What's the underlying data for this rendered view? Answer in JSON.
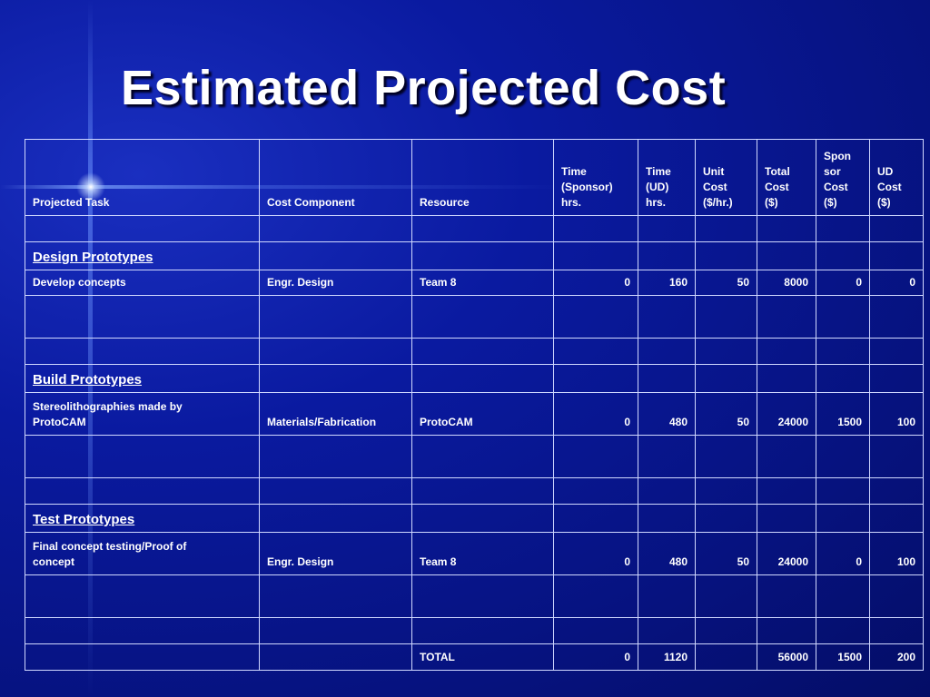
{
  "title": "Estimated Projected Cost",
  "headers": {
    "task": "Projected Task",
    "component": "Cost Component",
    "resource": "Resource",
    "time_sponsor": "Time\n(Sponsor)\nhrs.",
    "time_ud": "Time\n(UD)\nhrs.",
    "unit_cost": "Unit\nCost\n($/hr.)",
    "total_cost": "Total\nCost\n($)",
    "sponsor_cost": "Spon\nsor\nCost\n($)",
    "ud_cost": "UD\nCost\n($)"
  },
  "sections": {
    "design": "Design Prototypes",
    "build": "Build Prototypes",
    "test": "Test Prototypes"
  },
  "rows": {
    "develop": {
      "task": "Develop concepts",
      "component": "Engr. Design",
      "resource": "Team 8",
      "time_sponsor": "0",
      "time_ud": "160",
      "unit_cost": "50",
      "total_cost": "8000",
      "sponsor_cost": "0",
      "ud_cost": "0"
    },
    "stereo": {
      "task": "Stereolithographies made by\nProtoCAM",
      "component": "Materials/Fabrication",
      "resource": "ProtoCAM",
      "time_sponsor": "0",
      "time_ud": "480",
      "unit_cost": "50",
      "total_cost": "24000",
      "sponsor_cost": "1500",
      "ud_cost": "100"
    },
    "final": {
      "task": "Final concept testing/Proof of\nconcept",
      "component": "Engr. Design",
      "resource": "Team 8",
      "time_sponsor": "0",
      "time_ud": "480",
      "unit_cost": "50",
      "total_cost": "24000",
      "sponsor_cost": "0",
      "ud_cost": "100"
    },
    "total": {
      "resource": "TOTAL",
      "time_sponsor": "0",
      "time_ud": "1120",
      "unit_cost": "",
      "total_cost": "56000",
      "sponsor_cost": "1500",
      "ud_cost": "200"
    }
  }
}
